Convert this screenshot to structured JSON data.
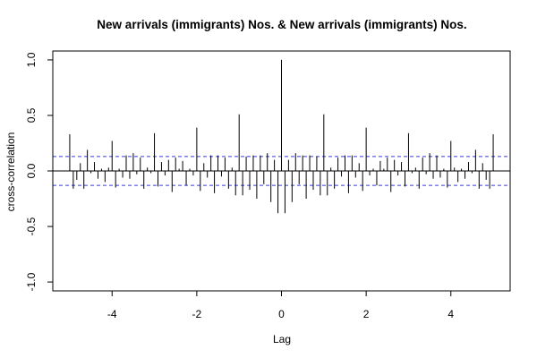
{
  "chart_data": {
    "type": "bar",
    "title": "New arrivals (immigrants) Nos. & New arrivals (immigrants) Nos.",
    "xlabel": "Lag",
    "ylabel": "cross-correlation",
    "xlim": [
      -5.4,
      5.4
    ],
    "ylim": [
      -1.08,
      1.08
    ],
    "x_ticks": [
      -4,
      -2,
      0,
      2,
      4
    ],
    "y_ticks": [
      -1.0,
      -0.5,
      0.0,
      0.5,
      1.0
    ],
    "x_tick_labels": [
      "-4",
      "-2",
      "0",
      "2",
      "4"
    ],
    "y_tick_labels": [
      "-1.0",
      "-0.5",
      "0.0",
      "0.5",
      "1.0"
    ],
    "confidence_limit": 0.13,
    "series": [
      {
        "lags": [
          -5.0,
          -4.9167,
          -4.8333,
          -4.75,
          -4.6667,
          -4.5833,
          -4.5,
          -4.4167,
          -4.3333,
          -4.25,
          -4.1667,
          -4.0833,
          -4.0,
          -3.9167,
          -3.8333,
          -3.75,
          -3.6667,
          -3.5833,
          -3.5,
          -3.4167,
          -3.3333,
          -3.25,
          -3.1667,
          -3.0833,
          -3.0,
          -2.9167,
          -2.8333,
          -2.75,
          -2.6667,
          -2.5833,
          -2.5,
          -2.4167,
          -2.3333,
          -2.25,
          -2.1667,
          -2.0833,
          -2.0,
          -1.9167,
          -1.8333,
          -1.75,
          -1.6667,
          -1.5833,
          -1.5,
          -1.4167,
          -1.3333,
          -1.25,
          -1.1667,
          -1.0833,
          -1.0,
          -0.9167,
          -0.8333,
          -0.75,
          -0.6667,
          -0.5833,
          -0.5,
          -0.4167,
          -0.3333,
          -0.25,
          -0.1667,
          -0.0833,
          0.0,
          0.0833,
          0.1667,
          0.25,
          0.3333,
          0.4167,
          0.5,
          0.5833,
          0.6667,
          0.75,
          0.8333,
          0.9167,
          1.0,
          1.0833,
          1.1667,
          1.25,
          1.3333,
          1.4167,
          1.5,
          1.5833,
          1.6667,
          1.75,
          1.8333,
          1.9167,
          2.0,
          2.0833,
          2.1667,
          2.25,
          2.3333,
          2.4167,
          2.5,
          2.5833,
          2.6667,
          2.75,
          2.8333,
          2.9167,
          3.0,
          3.0833,
          3.1667,
          3.25,
          3.3333,
          3.4167,
          3.5,
          3.5833,
          3.6667,
          3.75,
          3.8333,
          3.9167,
          4.0,
          4.0833,
          4.1667,
          4.25,
          4.3333,
          4.4167,
          4.5,
          4.5833,
          4.6667,
          4.75,
          4.8333,
          4.9167,
          5.0
        ],
        "values": [
          0.33,
          -0.16,
          -0.08,
          0.07,
          -0.16,
          0.19,
          -0.02,
          0.08,
          -0.07,
          0.02,
          -0.1,
          0.03,
          0.27,
          -0.15,
          0.02,
          -0.06,
          0.14,
          -0.07,
          0.16,
          -0.03,
          0.12,
          -0.16,
          0.03,
          -0.02,
          0.34,
          -0.14,
          0.08,
          -0.04,
          0.1,
          -0.19,
          0.12,
          0.02,
          0.09,
          -0.13,
          0.02,
          -0.04,
          0.39,
          -0.18,
          0.07,
          -0.06,
          0.14,
          -0.2,
          0.14,
          -0.05,
          0.12,
          -0.16,
          0.03,
          -0.22,
          0.51,
          -0.22,
          0.13,
          -0.17,
          0.14,
          -0.25,
          0.14,
          -0.12,
          0.16,
          -0.28,
          0.1,
          -0.38,
          1.0,
          -0.38,
          0.1,
          -0.28,
          0.16,
          -0.12,
          0.14,
          -0.25,
          0.14,
          -0.17,
          0.13,
          -0.22,
          0.51,
          -0.22,
          0.03,
          -0.16,
          0.12,
          -0.05,
          0.14,
          -0.2,
          0.14,
          -0.06,
          0.07,
          -0.18,
          0.39,
          -0.04,
          0.02,
          -0.13,
          0.09,
          0.02,
          0.12,
          -0.19,
          0.1,
          -0.04,
          0.08,
          -0.14,
          0.34,
          -0.02,
          0.03,
          -0.16,
          0.12,
          -0.03,
          0.16,
          -0.07,
          0.14,
          -0.06,
          0.02,
          -0.15,
          0.27,
          0.03,
          -0.1,
          0.02,
          -0.07,
          0.08,
          -0.02,
          0.19,
          -0.16,
          0.07,
          -0.08,
          -0.16,
          0.33
        ]
      }
    ],
    "grid": false,
    "colors": {
      "bars": "#000000",
      "confidence": "#3b3bd6",
      "zero_line": "#000000",
      "frame": "#000000"
    }
  }
}
